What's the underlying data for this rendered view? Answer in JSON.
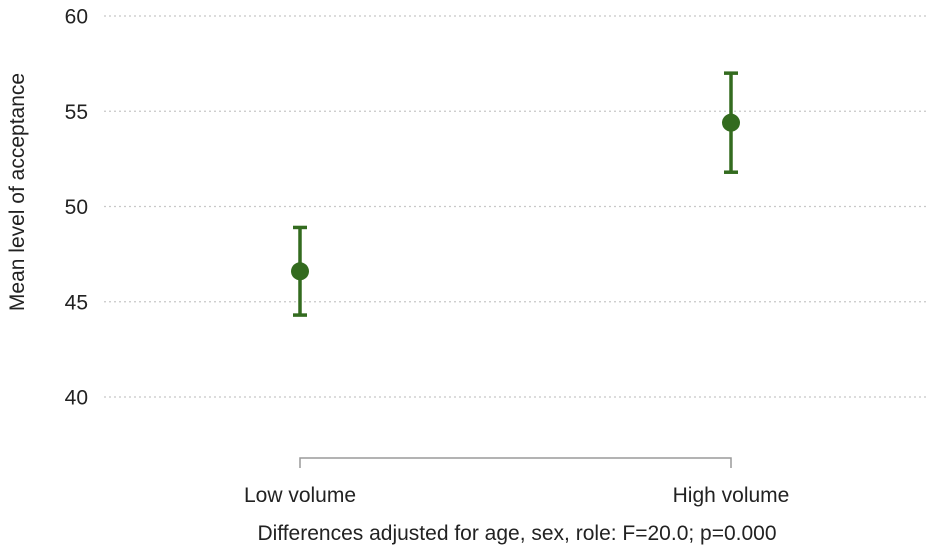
{
  "chart_data": {
    "type": "scatter",
    "categories": [
      "Low volume",
      "High volume"
    ],
    "series": [
      {
        "values": [
          46.6,
          54.4
        ],
        "ci_low": [
          44.3,
          51.8
        ],
        "ci_high": [
          48.9,
          57.0
        ],
        "color": "#336b1f"
      }
    ],
    "title": "",
    "xlabel": "",
    "ylabel": "Mean level of acceptance",
    "ylim": [
      40,
      60
    ],
    "yticks": [
      40,
      45,
      50,
      55,
      60
    ],
    "grid": true,
    "note": "Differences adjusted for age, sex, role: F=20.0; p=0.000"
  }
}
